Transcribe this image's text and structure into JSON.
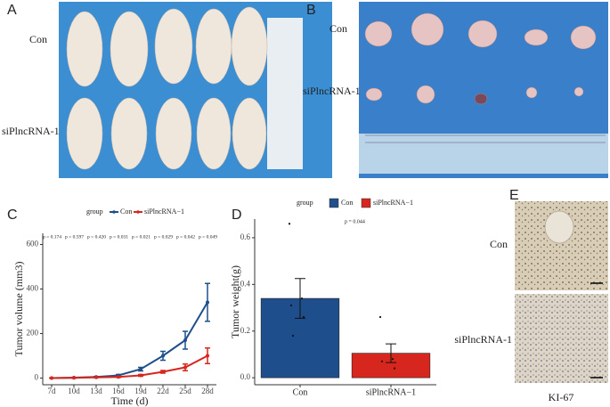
{
  "panels": {
    "A": {
      "letter": "A",
      "rows": [
        "Con",
        "siPlncRNA-1"
      ]
    },
    "B": {
      "letter": "B",
      "rows": [
        "Con",
        "siPlncRNA-1"
      ]
    },
    "E": {
      "letter": "E",
      "rows": [
        "Con",
        "siPlncRNA-1"
      ],
      "caption": "KI-67"
    }
  },
  "chart_data": [
    {
      "type": "line",
      "panel": "C",
      "legend_title": "group",
      "x_label": "Time (d)",
      "y_label": "Tumor volume (mm3)",
      "categories": [
        "7d",
        "10d",
        "13d",
        "16d",
        "19d",
        "22d",
        "25d",
        "28d"
      ],
      "annotations": [
        "p = 0.174",
        "p = 0.597",
        "p = 0.420",
        "p = 0.031",
        "p = 0.021",
        "p = 0.029",
        "p = 0.042",
        "p = 0.049"
      ],
      "series": [
        {
          "name": "Con",
          "color": "#1f4e8c",
          "values": [
            0,
            2,
            5,
            12,
            40,
            100,
            170,
            340
          ],
          "errors": [
            0,
            1,
            2,
            4,
            8,
            20,
            40,
            85
          ]
        },
        {
          "name": "siPlncRNA−1",
          "color": "#d7261e",
          "values": [
            0,
            1,
            3,
            5,
            12,
            28,
            48,
            100
          ],
          "errors": [
            0,
            1,
            1,
            2,
            4,
            6,
            15,
            35
          ]
        }
      ],
      "ylim": [
        -30,
        650
      ],
      "yticks": [
        0,
        200,
        400,
        600
      ],
      "grid": false
    },
    {
      "type": "bar",
      "panel": "D",
      "legend_title": "group",
      "annotation": "p = 0.044",
      "y_label": "Tumor weight(g)",
      "categories": [
        "Con",
        "siPlncRNA−1"
      ],
      "colors": [
        "#1f4e8c",
        "#d7261e"
      ],
      "values": [
        0.34,
        0.105
      ],
      "errors": [
        0.085,
        0.04
      ],
      "points": [
        [
          0.66,
          0.34,
          0.31,
          0.26,
          0.18
        ],
        [
          0.26,
          0.08,
          0.07,
          0.04
        ]
      ],
      "ylim": [
        -0.03,
        0.68
      ],
      "yticks": [
        {
          "value": 0,
          "label": "0.0"
        },
        0.2,
        0.4,
        0.6
      ],
      "grid": false
    }
  ]
}
